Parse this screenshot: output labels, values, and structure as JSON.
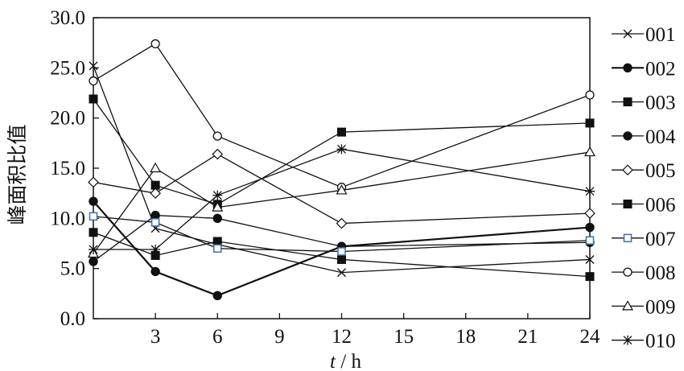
{
  "chart_data": {
    "type": "line",
    "title": "",
    "xlabel_var": "t",
    "xlabel_unit": " / h",
    "ylabel": "峰面积比值",
    "xlim": [
      0,
      24
    ],
    "ylim": [
      0,
      30
    ],
    "xticks": [
      3,
      6,
      9,
      12,
      15,
      18,
      21,
      24
    ],
    "yticks": [
      "0.0",
      "5.0",
      "10.0",
      "15.0",
      "20.0",
      "25.0",
      "30.0"
    ],
    "x": [
      0,
      3,
      6,
      12,
      24
    ],
    "grid": false,
    "legend_position": "right",
    "series": [
      {
        "name": "001",
        "marker": "x",
        "values": [
          25.2,
          9.0,
          7.4,
          4.6,
          5.9
        ]
      },
      {
        "name": "002",
        "marker": "dot",
        "values": [
          11.7,
          4.7,
          2.3,
          7.2,
          9.1
        ]
      },
      {
        "name": "003",
        "marker": "square",
        "values": [
          21.9,
          13.3,
          11.4,
          18.6,
          19.5
        ]
      },
      {
        "name": "004",
        "marker": "dot",
        "values": [
          5.7,
          10.3,
          10.0,
          7.2,
          7.6
        ]
      },
      {
        "name": "005",
        "marker": "diamond",
        "values": [
          13.6,
          12.5,
          16.4,
          9.5,
          10.5
        ]
      },
      {
        "name": "006",
        "marker": "square",
        "values": [
          8.6,
          6.3,
          7.7,
          5.9,
          4.2
        ]
      },
      {
        "name": "007",
        "marker": "square-open",
        "values": [
          10.2,
          9.6,
          7.0,
          6.7,
          7.8
        ]
      },
      {
        "name": "008",
        "marker": "circle-open",
        "values": [
          23.7,
          27.4,
          18.2,
          13.1,
          22.3
        ]
      },
      {
        "name": "009",
        "marker": "triangle",
        "values": [
          6.5,
          15.0,
          11.1,
          12.8,
          16.6
        ]
      },
      {
        "name": "010",
        "marker": "star",
        "values": [
          6.9,
          6.9,
          12.3,
          16.9,
          12.7
        ]
      }
    ]
  }
}
